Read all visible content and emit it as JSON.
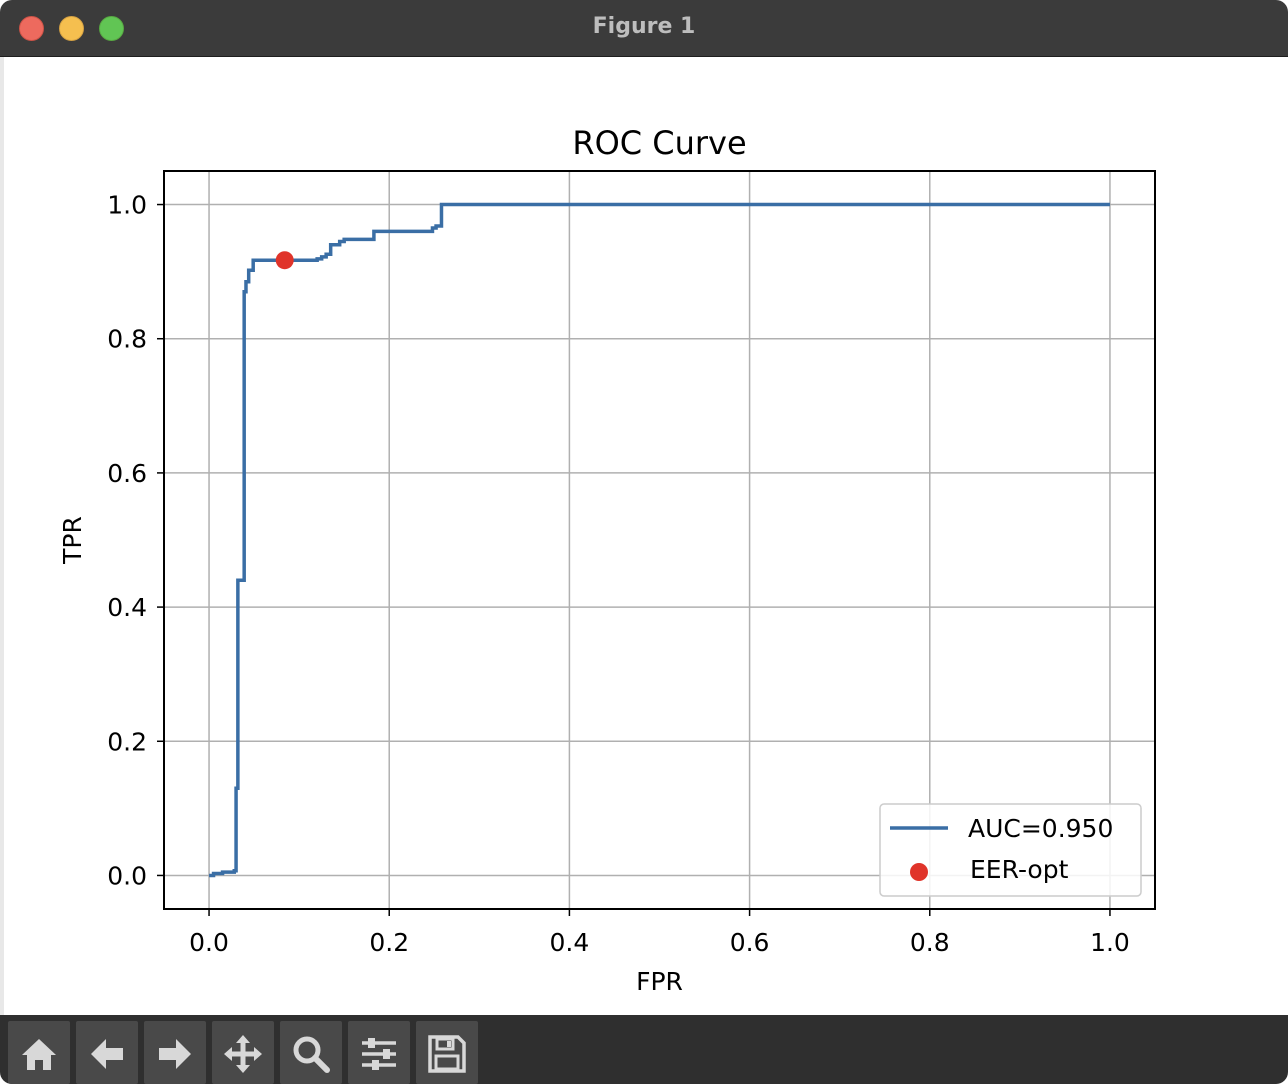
{
  "window": {
    "title": "Figure 1"
  },
  "toolbar": {
    "tools": [
      "home",
      "back",
      "forward",
      "pan",
      "zoom",
      "configure-subplots",
      "save"
    ]
  },
  "colors": {
    "line": "#3a6ea5",
    "marker": "#e0342a",
    "grid": "#b0b0b0",
    "titlebar": "#3b3b3b",
    "toolbar": "#2f2f2f"
  },
  "chart_data": {
    "type": "line",
    "title": "ROC Curve",
    "xlabel": "FPR",
    "ylabel": "TPR",
    "xlim": [
      -0.05,
      1.05
    ],
    "ylim": [
      -0.05,
      1.05
    ],
    "xticks": [
      "0.0",
      "0.2",
      "0.4",
      "0.6",
      "0.8",
      "1.0"
    ],
    "yticks": [
      "0.0",
      "0.2",
      "0.4",
      "0.6",
      "0.8",
      "1.0"
    ],
    "grid": true,
    "legend_position": "lower-right",
    "series": [
      {
        "name": "AUC=0.950",
        "kind": "line",
        "color": "#3a6ea5",
        "x": [
          0.0,
          0.005,
          0.005,
          0.015,
          0.015,
          0.028,
          0.028,
          0.03,
          0.03,
          0.032,
          0.032,
          0.039,
          0.039,
          0.041,
          0.041,
          0.044,
          0.044,
          0.049,
          0.049,
          0.12,
          0.12,
          0.125,
          0.125,
          0.13,
          0.13,
          0.135,
          0.135,
          0.145,
          0.145,
          0.15,
          0.15,
          0.183,
          0.183,
          0.248,
          0.248,
          0.252,
          0.252,
          0.258,
          0.258,
          1.0
        ],
        "y": [
          0.0,
          0.0,
          0.003,
          0.003,
          0.005,
          0.005,
          0.007,
          0.007,
          0.13,
          0.13,
          0.44,
          0.44,
          0.87,
          0.87,
          0.885,
          0.885,
          0.902,
          0.902,
          0.917,
          0.917,
          0.919,
          0.919,
          0.922,
          0.922,
          0.926,
          0.926,
          0.94,
          0.94,
          0.945,
          0.945,
          0.948,
          0.948,
          0.96,
          0.96,
          0.965,
          0.965,
          0.968,
          0.968,
          1.0,
          1.0
        ]
      },
      {
        "name": "EER-opt",
        "kind": "marker",
        "color": "#e0342a",
        "x": [
          0.084
        ],
        "y": [
          0.917
        ]
      }
    ]
  }
}
